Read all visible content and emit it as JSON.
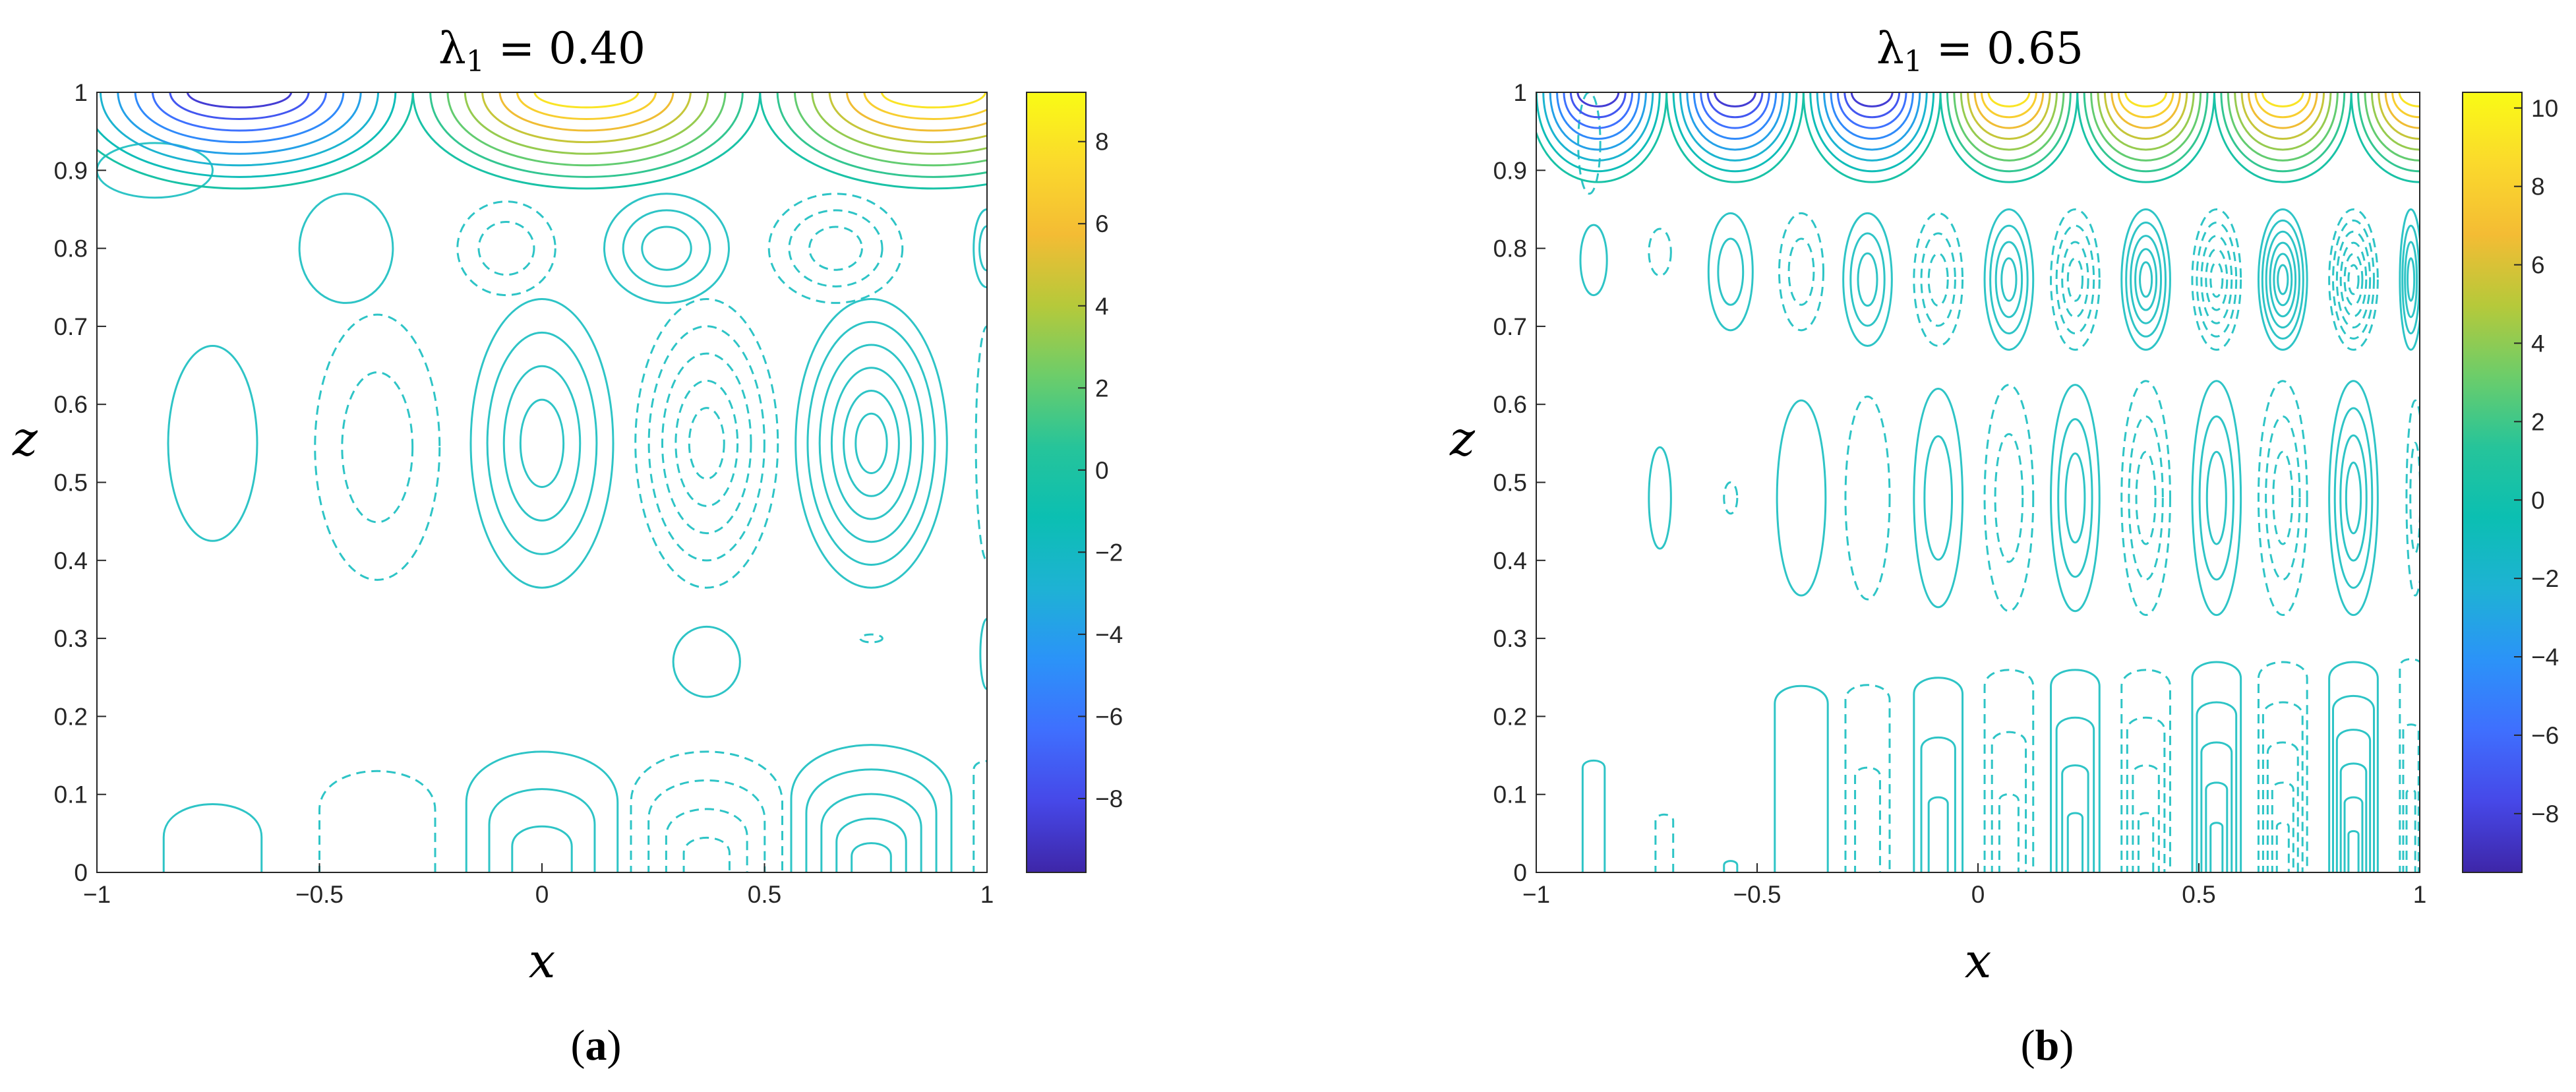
{
  "figure": {
    "colors": {
      "contour": "#2ec4c6",
      "colormap": [
        "#3e26a8",
        "#4648e8",
        "#3f6ffe",
        "#2b93f8",
        "#1eb2d4",
        "#0bbfb2",
        "#26c49a",
        "#6ccd6a",
        "#b6c93a",
        "#f4bc34",
        "#fbd92c",
        "#f9fb15"
      ]
    },
    "panels": [
      {
        "label": "(a)",
        "label_letter": "a",
        "title_symbol": "λ",
        "title_subscript": "1",
        "title_rest": " = 0.40",
        "xlabel": "x",
        "ylabel": "z",
        "x_ticks": [
          "−1",
          "−0.5",
          "0",
          "0.5",
          "1"
        ],
        "y_ticks": [
          "0",
          "0.1",
          "0.2",
          "0.3",
          "0.4",
          "0.5",
          "0.6",
          "0.7",
          "0.8",
          "0.9",
          "1"
        ],
        "colorbar_ticks": [
          "8",
          "6",
          "4",
          "2",
          "0",
          "−2",
          "−4",
          "−6",
          "−8"
        ]
      },
      {
        "label": "(b)",
        "label_letter": "b",
        "title_symbol": "λ",
        "title_subscript": "1",
        "title_rest": " = 0.65",
        "xlabel": "x",
        "ylabel": "z",
        "x_ticks": [
          "−1",
          "−0.5",
          "0",
          "0.5",
          "1"
        ],
        "y_ticks": [
          "0",
          "0.1",
          "0.2",
          "0.3",
          "0.4",
          "0.5",
          "0.6",
          "0.7",
          "0.8",
          "0.9",
          "1"
        ],
        "colorbar_ticks": [
          "10",
          "8",
          "6",
          "4",
          "2",
          "0",
          "−2",
          "−4",
          "−6",
          "−8"
        ]
      }
    ]
  },
  "chart_data": [
    {
      "type": "contour",
      "title": "λ1 = 0.40",
      "xlabel": "x",
      "ylabel": "z",
      "xlim": [
        -1,
        1
      ],
      "ylim": [
        0,
        1
      ],
      "x_ticks": [
        -1,
        -0.5,
        0,
        0.5,
        1
      ],
      "y_ticks": [
        0,
        0.1,
        0.2,
        0.3,
        0.4,
        0.5,
        0.6,
        0.7,
        0.8,
        0.9,
        1
      ],
      "colorbar": {
        "range": [
          -9.8,
          9.2
        ],
        "ticks": [
          -8,
          -6,
          -4,
          -2,
          0,
          2,
          4,
          6,
          8
        ],
        "colormap": "parula"
      },
      "line_style": {
        "positive": "solid",
        "negative": "dashed"
      },
      "cells": [
        {
          "x": -0.74,
          "z": 0.05,
          "sign": 1,
          "w": 0.22,
          "h": 0.105,
          "n": 1,
          "anchor": "bottom"
        },
        {
          "x": -0.37,
          "z": 0.05,
          "sign": -1,
          "w": 0.26,
          "h": 0.15,
          "n": 1,
          "anchor": "bottom"
        },
        {
          "x": 0.0,
          "z": 0.05,
          "sign": 1,
          "w": 0.34,
          "h": 0.18,
          "n": 3,
          "anchor": "bottom"
        },
        {
          "x": 0.37,
          "z": 0.05,
          "sign": -1,
          "w": 0.34,
          "h": 0.18,
          "n": 4,
          "anchor": "bottom"
        },
        {
          "x": 0.74,
          "z": 0.05,
          "sign": 1,
          "w": 0.36,
          "h": 0.19,
          "n": 5,
          "anchor": "bottom"
        },
        {
          "x": 1.0,
          "z": 0.05,
          "sign": -1,
          "w": 0.06,
          "h": 0.15,
          "n": 1,
          "anchor": "bottom"
        },
        {
          "x": 0.37,
          "z": 0.27,
          "sign": 1,
          "w": 0.15,
          "h": 0.09,
          "n": 1,
          "anchor": "center"
        },
        {
          "x": 0.74,
          "z": 0.3,
          "sign": -1,
          "w": 0.05,
          "h": 0.01,
          "n": 1,
          "anchor": "center"
        },
        {
          "x": 1.0,
          "z": 0.28,
          "sign": 1,
          "w": 0.03,
          "h": 0.09,
          "n": 1,
          "anchor": "center"
        },
        {
          "x": -0.74,
          "z": 0.55,
          "sign": 1,
          "w": 0.2,
          "h": 0.25,
          "n": 1,
          "anchor": "center"
        },
        {
          "x": -0.37,
          "z": 0.545,
          "sign": -1,
          "w": 0.28,
          "h": 0.34,
          "n": 2,
          "anchor": "center"
        },
        {
          "x": 0.0,
          "z": 0.55,
          "sign": 1,
          "w": 0.32,
          "h": 0.37,
          "n": 4,
          "anchor": "center"
        },
        {
          "x": 0.37,
          "z": 0.55,
          "sign": -1,
          "w": 0.32,
          "h": 0.37,
          "n": 5,
          "anchor": "center"
        },
        {
          "x": 0.74,
          "z": 0.55,
          "sign": 1,
          "w": 0.34,
          "h": 0.37,
          "n": 6,
          "anchor": "center"
        },
        {
          "x": 1.0,
          "z": 0.55,
          "sign": -1,
          "w": 0.05,
          "h": 0.3,
          "n": 1,
          "anchor": "center"
        },
        {
          "x": -0.44,
          "z": 0.8,
          "sign": 1,
          "w": 0.21,
          "h": 0.14,
          "n": 1,
          "anchor": "center"
        },
        {
          "x": -0.08,
          "z": 0.8,
          "sign": -1,
          "w": 0.22,
          "h": 0.12,
          "n": 2,
          "anchor": "center"
        },
        {
          "x": 0.28,
          "z": 0.8,
          "sign": 1,
          "w": 0.28,
          "h": 0.14,
          "n": 3,
          "anchor": "center"
        },
        {
          "x": 0.66,
          "z": 0.8,
          "sign": -1,
          "w": 0.3,
          "h": 0.14,
          "n": 3,
          "anchor": "center"
        },
        {
          "x": 1.0,
          "z": 0.8,
          "sign": 1,
          "w": 0.06,
          "h": 0.1,
          "n": 2,
          "anchor": "center"
        },
        {
          "x": -0.87,
          "z": 0.9,
          "sign": 1,
          "w": 0.26,
          "h": 0.07,
          "n": 1,
          "anchor": "center"
        }
      ],
      "top_band": {
        "z_bottom": 0.85,
        "x_start": -0.68,
        "period": 0.78,
        "amplitude": 9.5
      }
    },
    {
      "type": "contour",
      "title": "λ1 = 0.65",
      "xlabel": "x",
      "ylabel": "z",
      "xlim": [
        -1,
        1
      ],
      "ylim": [
        0,
        1
      ],
      "x_ticks": [
        -1,
        -0.5,
        0,
        0.5,
        1
      ],
      "y_ticks": [
        0,
        0.1,
        0.2,
        0.3,
        0.4,
        0.5,
        0.6,
        0.7,
        0.8,
        0.9,
        1
      ],
      "colorbar": {
        "range": [
          -9.5,
          10.4
        ],
        "ticks": [
          -8,
          -6,
          -4,
          -2,
          0,
          2,
          4,
          6,
          8,
          10
        ],
        "colormap": "parula"
      },
      "line_style": {
        "positive": "solid",
        "negative": "dashed"
      },
      "cells": [
        {
          "x": -0.87,
          "z": 0.04,
          "sign": 1,
          "w": 0.05,
          "h": 0.15,
          "n": 1,
          "anchor": "bottom"
        },
        {
          "x": -0.71,
          "z": 0.04,
          "sign": -1,
          "w": 0.04,
          "h": 0.08,
          "n": 1,
          "anchor": "bottom"
        },
        {
          "x": -0.56,
          "z": 0.04,
          "sign": 1,
          "w": 0.03,
          "h": 0.02,
          "n": 1,
          "anchor": "bottom"
        },
        {
          "x": -0.4,
          "z": 0.04,
          "sign": 1,
          "w": 0.12,
          "h": 0.25,
          "n": 1,
          "anchor": "bottom"
        },
        {
          "x": -0.25,
          "z": 0.04,
          "sign": -1,
          "w": 0.1,
          "h": 0.25,
          "n": 2,
          "anchor": "bottom"
        },
        {
          "x": -0.09,
          "z": 0.04,
          "sign": 1,
          "w": 0.11,
          "h": 0.26,
          "n": 3,
          "anchor": "bottom"
        },
        {
          "x": 0.07,
          "z": 0.04,
          "sign": -1,
          "w": 0.11,
          "h": 0.27,
          "n": 3,
          "anchor": "bottom"
        },
        {
          "x": 0.22,
          "z": 0.04,
          "sign": 1,
          "w": 0.11,
          "h": 0.27,
          "n": 4,
          "anchor": "bottom"
        },
        {
          "x": 0.38,
          "z": 0.04,
          "sign": -1,
          "w": 0.11,
          "h": 0.27,
          "n": 4,
          "anchor": "bottom"
        },
        {
          "x": 0.54,
          "z": 0.04,
          "sign": 1,
          "w": 0.11,
          "h": 0.28,
          "n": 5,
          "anchor": "bottom"
        },
        {
          "x": 0.69,
          "z": 0.04,
          "sign": -1,
          "w": 0.11,
          "h": 0.28,
          "n": 5,
          "anchor": "bottom"
        },
        {
          "x": 0.85,
          "z": 0.04,
          "sign": 1,
          "w": 0.11,
          "h": 0.28,
          "n": 6,
          "anchor": "bottom"
        },
        {
          "x": 0.98,
          "z": 0.04,
          "sign": -1,
          "w": 0.05,
          "h": 0.28,
          "n": 3,
          "anchor": "bottom"
        },
        {
          "x": -0.72,
          "z": 0.48,
          "sign": 1,
          "w": 0.05,
          "h": 0.13,
          "n": 1,
          "anchor": "center"
        },
        {
          "x": -0.56,
          "z": 0.48,
          "sign": -1,
          "w": 0.03,
          "h": 0.04,
          "n": 1,
          "anchor": "center"
        },
        {
          "x": -0.4,
          "z": 0.48,
          "sign": 1,
          "w": 0.11,
          "h": 0.25,
          "n": 1,
          "anchor": "center"
        },
        {
          "x": -0.25,
          "z": 0.48,
          "sign": -1,
          "w": 0.1,
          "h": 0.26,
          "n": 1,
          "anchor": "center"
        },
        {
          "x": -0.09,
          "z": 0.48,
          "sign": 1,
          "w": 0.11,
          "h": 0.28,
          "n": 2,
          "anchor": "center"
        },
        {
          "x": 0.07,
          "z": 0.48,
          "sign": -1,
          "w": 0.11,
          "h": 0.29,
          "n": 2,
          "anchor": "center"
        },
        {
          "x": 0.22,
          "z": 0.48,
          "sign": 1,
          "w": 0.11,
          "h": 0.29,
          "n": 3,
          "anchor": "center"
        },
        {
          "x": 0.38,
          "z": 0.48,
          "sign": -1,
          "w": 0.11,
          "h": 0.3,
          "n": 3,
          "anchor": "center"
        },
        {
          "x": 0.54,
          "z": 0.48,
          "sign": 1,
          "w": 0.11,
          "h": 0.3,
          "n": 3,
          "anchor": "center"
        },
        {
          "x": 0.69,
          "z": 0.48,
          "sign": -1,
          "w": 0.11,
          "h": 0.3,
          "n": 3,
          "anchor": "center"
        },
        {
          "x": 0.85,
          "z": 0.48,
          "sign": 1,
          "w": 0.11,
          "h": 0.3,
          "n": 4,
          "anchor": "center"
        },
        {
          "x": 0.99,
          "z": 0.48,
          "sign": -1,
          "w": 0.04,
          "h": 0.25,
          "n": 2,
          "anchor": "center"
        },
        {
          "x": -0.87,
          "z": 0.785,
          "sign": 1,
          "w": 0.06,
          "h": 0.09,
          "n": 1,
          "anchor": "center"
        },
        {
          "x": -0.72,
          "z": 0.795,
          "sign": -1,
          "w": 0.05,
          "h": 0.06,
          "n": 1,
          "anchor": "center"
        },
        {
          "x": -0.56,
          "z": 0.77,
          "sign": 1,
          "w": 0.1,
          "h": 0.15,
          "n": 2,
          "anchor": "center"
        },
        {
          "x": -0.4,
          "z": 0.77,
          "sign": -1,
          "w": 0.1,
          "h": 0.15,
          "n": 2,
          "anchor": "center"
        },
        {
          "x": -0.25,
          "z": 0.76,
          "sign": 1,
          "w": 0.11,
          "h": 0.17,
          "n": 3,
          "anchor": "center"
        },
        {
          "x": -0.09,
          "z": 0.76,
          "sign": -1,
          "w": 0.11,
          "h": 0.17,
          "n": 3,
          "anchor": "center"
        },
        {
          "x": 0.07,
          "z": 0.76,
          "sign": 1,
          "w": 0.11,
          "h": 0.18,
          "n": 4,
          "anchor": "center"
        },
        {
          "x": 0.22,
          "z": 0.76,
          "sign": -1,
          "w": 0.11,
          "h": 0.18,
          "n": 4,
          "anchor": "center"
        },
        {
          "x": 0.38,
          "z": 0.76,
          "sign": 1,
          "w": 0.11,
          "h": 0.18,
          "n": 5,
          "anchor": "center"
        },
        {
          "x": 0.54,
          "z": 0.76,
          "sign": -1,
          "w": 0.11,
          "h": 0.18,
          "n": 5,
          "anchor": "center"
        },
        {
          "x": 0.69,
          "z": 0.76,
          "sign": 1,
          "w": 0.11,
          "h": 0.18,
          "n": 6,
          "anchor": "center"
        },
        {
          "x": 0.85,
          "z": 0.76,
          "sign": -1,
          "w": 0.11,
          "h": 0.18,
          "n": 6,
          "anchor": "center"
        },
        {
          "x": 0.98,
          "z": 0.76,
          "sign": 1,
          "w": 0.05,
          "h": 0.18,
          "n": 4,
          "anchor": "center"
        },
        {
          "x": -0.88,
          "z": 0.935,
          "sign": -1,
          "w": 0.05,
          "h": 0.13,
          "n": 1,
          "anchor": "center"
        }
      ],
      "top_band": {
        "z_bottom": 0.86,
        "x_start": -0.86,
        "period": 0.31,
        "amplitude": 10
      }
    }
  ]
}
